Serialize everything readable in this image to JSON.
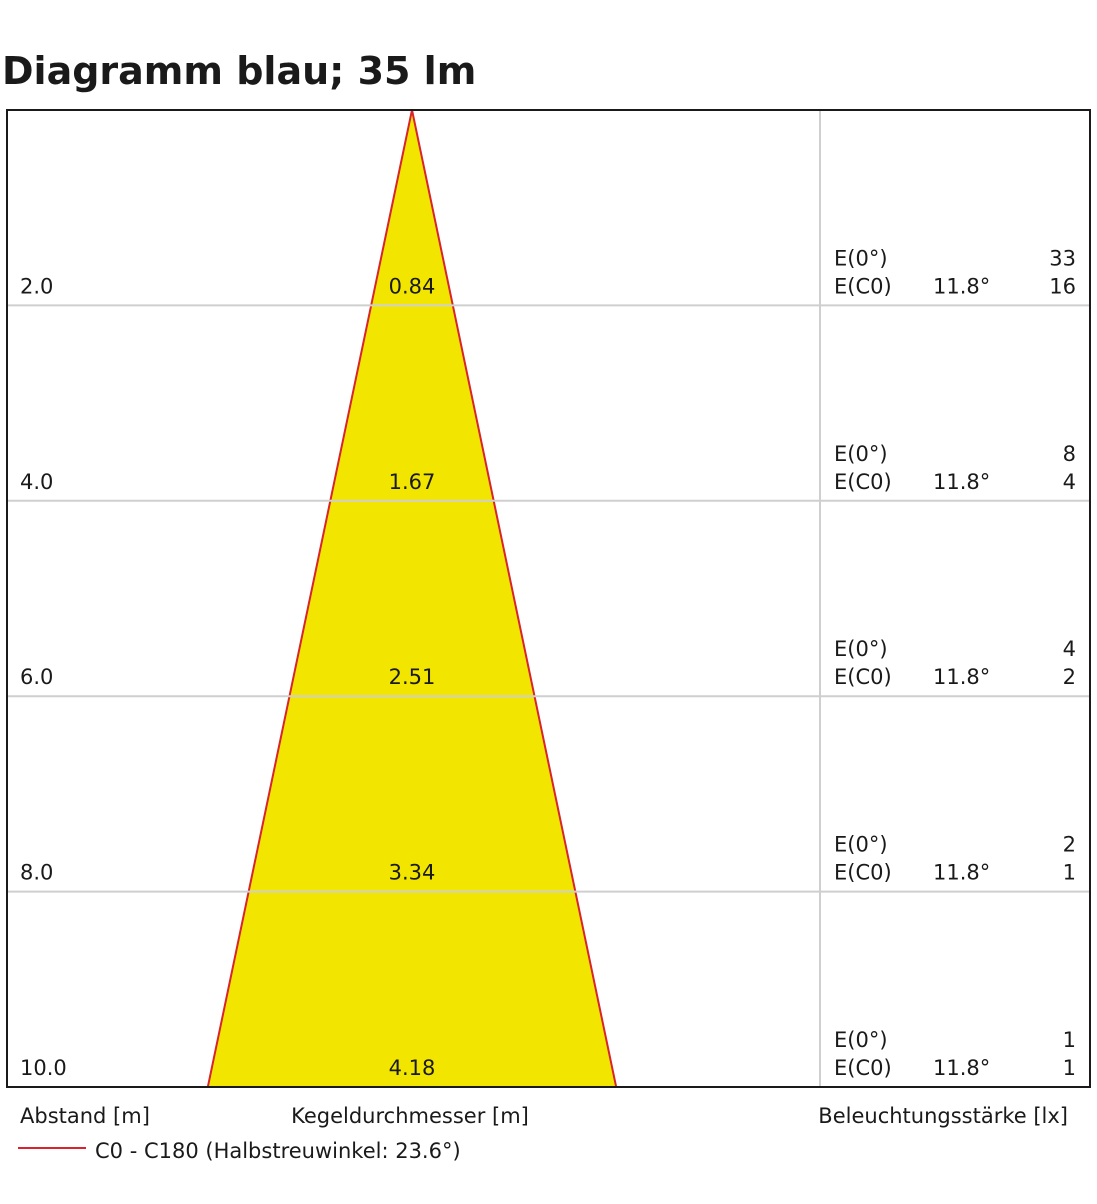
{
  "chart_data": {
    "type": "cone",
    "title": "Diagramm blau; 35 lm",
    "y_label": "Abstand [m]",
    "x_label": "Kegeldurchmesser [m]",
    "e_label": "Beleuchtungsstärke [lx]",
    "legend": "C0 - C180 (Halbstreuwinkel: 23.6°)",
    "ylim": [
      0,
      10
    ],
    "distances": [
      {
        "value": 2,
        "label": "2.0"
      },
      {
        "value": 4,
        "label": "4.0"
      },
      {
        "value": 6,
        "label": "6.0"
      },
      {
        "value": 8,
        "label": "8.0"
      },
      {
        "value": 10,
        "label": "10.0"
      }
    ],
    "diameters": [
      0.84,
      1.67,
      2.51,
      3.34,
      4.18
    ],
    "e0_label": "E(0°)",
    "ec0_label": "E(C0)",
    "angle_label": "11.8°",
    "e0": [
      33,
      8,
      4,
      2,
      1
    ],
    "ec0": [
      16,
      4,
      2,
      1,
      1
    ],
    "color": "#f2e600",
    "edge_color": "#d9232d",
    "grid": true
  }
}
